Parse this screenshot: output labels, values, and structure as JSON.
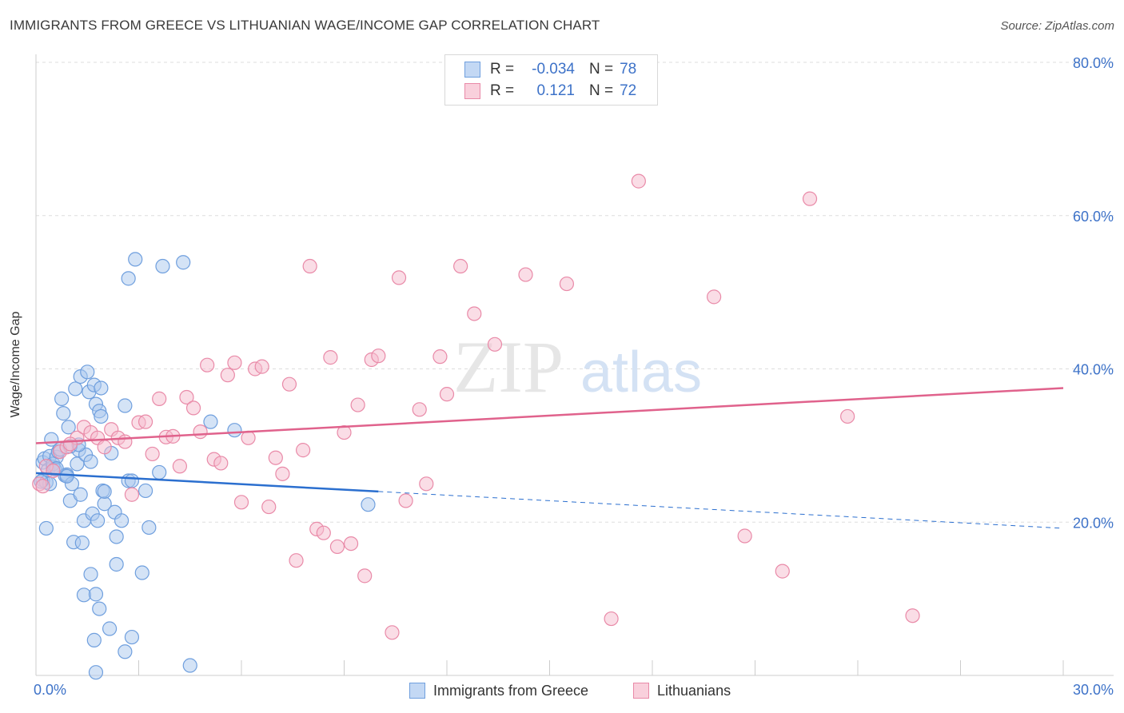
{
  "title": "IMMIGRANTS FROM GREECE VS LITHUANIAN WAGE/INCOME GAP CORRELATION CHART",
  "source": "Source: ZipAtlas.com",
  "watermark": {
    "zip": "ZIP",
    "atlas": "atlas"
  },
  "legend": {
    "rows": [
      {
        "label": "R =",
        "r_value": "-0.034",
        "n_label": "N =",
        "n_value": "78"
      },
      {
        "label": "R =",
        "r_value": "0.121",
        "n_label": "N =",
        "n_value": "72"
      }
    ]
  },
  "colors": {
    "blue_fill": "#a9c7ee",
    "blue_stroke": "#6f9fde",
    "blue_line": "#2b6fcf",
    "pink_fill": "#f6bccd",
    "pink_stroke": "#e98aa8",
    "pink_line": "#e0628c",
    "axis_text": "#3d72c8",
    "grid": "#dddddd"
  },
  "chart_data": {
    "type": "scatter",
    "title": "IMMIGRANTS FROM GREECE VS LITHUANIAN WAGE/INCOME GAP CORRELATION CHART",
    "xlabel": "",
    "ylabel": "Wage/Income Gap",
    "xlim": [
      0,
      30
    ],
    "ylim": [
      0,
      80
    ],
    "x_ticks": [
      "0.0%",
      "30.0%"
    ],
    "y_ticks": [
      {
        "value": 20,
        "label": "20.0%"
      },
      {
        "value": 40,
        "label": "40.0%"
      },
      {
        "value": 60,
        "label": "60.0%"
      },
      {
        "value": 80,
        "label": "80.0%"
      }
    ],
    "series": [
      {
        "name": "Immigrants from Greece",
        "r": -0.034,
        "n": 78,
        "trend": {
          "x0": 0,
          "y0": 26.4,
          "x1": 10,
          "y1": 24.0,
          "x_end": 30,
          "y_end": 19.2
        },
        "points": [
          [
            0.2,
            25.5
          ],
          [
            0.2,
            27.8
          ],
          [
            0.25,
            28.3
          ],
          [
            0.3,
            25.2
          ],
          [
            0.35,
            26.8
          ],
          [
            0.4,
            28.6
          ],
          [
            0.45,
            30.8
          ],
          [
            0.5,
            27.2
          ],
          [
            0.5,
            27.6
          ],
          [
            0.55,
            26.9
          ],
          [
            0.6,
            28.5
          ],
          [
            0.65,
            29.2
          ],
          [
            0.7,
            29.5
          ],
          [
            0.75,
            36.1
          ],
          [
            0.8,
            34.2
          ],
          [
            0.85,
            26.1
          ],
          [
            0.9,
            26.2
          ],
          [
            0.95,
            32.4
          ],
          [
            1.0,
            22.8
          ],
          [
            1.05,
            25.0
          ],
          [
            1.1,
            17.4
          ],
          [
            1.15,
            37.4
          ],
          [
            1.2,
            27.6
          ],
          [
            1.25,
            29.4
          ],
          [
            1.3,
            39.0
          ],
          [
            1.35,
            17.3
          ],
          [
            1.4,
            20.2
          ],
          [
            1.45,
            28.8
          ],
          [
            1.5,
            39.6
          ],
          [
            1.55,
            37.0
          ],
          [
            1.6,
            27.9
          ],
          [
            1.65,
            21.1
          ],
          [
            1.7,
            37.9
          ],
          [
            1.75,
            35.4
          ],
          [
            1.8,
            20.2
          ],
          [
            1.85,
            34.5
          ],
          [
            1.9,
            33.8
          ],
          [
            1.95,
            24.1
          ],
          [
            2.0,
            22.4
          ],
          [
            2.2,
            29.0
          ],
          [
            2.3,
            21.3
          ],
          [
            2.35,
            18.1
          ],
          [
            2.5,
            20.2
          ],
          [
            2.6,
            35.2
          ],
          [
            2.7,
            25.4
          ],
          [
            2.8,
            25.4
          ],
          [
            3.1,
            13.4
          ],
          [
            3.2,
            24.1
          ],
          [
            3.3,
            19.3
          ],
          [
            3.6,
            26.5
          ],
          [
            5.1,
            33.1
          ],
          [
            5.8,
            32.0
          ],
          [
            9.7,
            22.3
          ],
          [
            1.4,
            10.5
          ],
          [
            1.6,
            13.2
          ],
          [
            1.7,
            4.6
          ],
          [
            1.75,
            10.6
          ],
          [
            1.85,
            8.7
          ],
          [
            2.15,
            6.1
          ],
          [
            2.35,
            14.5
          ],
          [
            2.8,
            5.0
          ],
          [
            2.6,
            3.1
          ],
          [
            4.5,
            1.3
          ],
          [
            1.75,
            0.4
          ],
          [
            2.9,
            54.3
          ],
          [
            3.7,
            53.4
          ],
          [
            4.3,
            53.9
          ],
          [
            2.7,
            51.8
          ],
          [
            1.9,
            37.5
          ],
          [
            0.3,
            19.2
          ],
          [
            0.4,
            25.0
          ],
          [
            0.6,
            27.0
          ],
          [
            1.0,
            29.9
          ],
          [
            1.25,
            30.1
          ],
          [
            1.3,
            23.6
          ],
          [
            0.9,
            26.0
          ],
          [
            2.0,
            24.0
          ],
          [
            0.15,
            25.3
          ]
        ]
      },
      {
        "name": "Lithuanians",
        "r": 0.121,
        "n": 72,
        "trend": {
          "x0": 0,
          "y0": 30.3,
          "x1": 30,
          "y1": 37.5
        },
        "points": [
          [
            0.1,
            25.0
          ],
          [
            0.3,
            27.3
          ],
          [
            0.5,
            26.7
          ],
          [
            0.7,
            29.2
          ],
          [
            0.9,
            29.8
          ],
          [
            1.2,
            31.0
          ],
          [
            1.4,
            32.4
          ],
          [
            1.6,
            31.7
          ],
          [
            1.8,
            31.0
          ],
          [
            2.0,
            29.8
          ],
          [
            2.2,
            32.1
          ],
          [
            2.4,
            31.0
          ],
          [
            2.6,
            30.5
          ],
          [
            2.8,
            23.6
          ],
          [
            3.0,
            33.0
          ],
          [
            3.2,
            33.1
          ],
          [
            3.4,
            28.9
          ],
          [
            3.6,
            36.1
          ],
          [
            3.8,
            31.1
          ],
          [
            4.0,
            31.2
          ],
          [
            4.2,
            27.3
          ],
          [
            4.4,
            36.3
          ],
          [
            4.6,
            34.9
          ],
          [
            4.8,
            31.8
          ],
          [
            5.0,
            40.5
          ],
          [
            5.2,
            28.2
          ],
          [
            5.4,
            27.7
          ],
          [
            5.6,
            39.2
          ],
          [
            5.8,
            40.8
          ],
          [
            6.0,
            22.6
          ],
          [
            6.2,
            31.0
          ],
          [
            6.4,
            40.0
          ],
          [
            6.6,
            40.3
          ],
          [
            6.8,
            22.0
          ],
          [
            7.0,
            28.4
          ],
          [
            7.2,
            26.3
          ],
          [
            7.4,
            38.0
          ],
          [
            7.6,
            15.0
          ],
          [
            7.8,
            29.4
          ],
          [
            8.0,
            53.4
          ],
          [
            8.2,
            19.1
          ],
          [
            8.4,
            18.6
          ],
          [
            8.6,
            41.5
          ],
          [
            8.8,
            16.8
          ],
          [
            9.0,
            31.7
          ],
          [
            9.2,
            17.2
          ],
          [
            9.4,
            35.3
          ],
          [
            9.6,
            13.0
          ],
          [
            9.8,
            41.2
          ],
          [
            10.0,
            41.7
          ],
          [
            10.4,
            5.6
          ],
          [
            10.6,
            51.9
          ],
          [
            10.8,
            22.8
          ],
          [
            11.2,
            34.7
          ],
          [
            11.4,
            25.0
          ],
          [
            11.8,
            41.6
          ],
          [
            12.0,
            36.7
          ],
          [
            12.4,
            53.4
          ],
          [
            12.8,
            47.2
          ],
          [
            13.4,
            43.2
          ],
          [
            14.3,
            52.3
          ],
          [
            15.5,
            51.1
          ],
          [
            16.8,
            7.4
          ],
          [
            17.6,
            64.5
          ],
          [
            19.8,
            49.4
          ],
          [
            20.7,
            18.2
          ],
          [
            21.8,
            13.6
          ],
          [
            22.6,
            62.2
          ],
          [
            23.7,
            33.8
          ],
          [
            25.6,
            7.8
          ],
          [
            0.2,
            24.7
          ],
          [
            1.0,
            30.2
          ]
        ]
      }
    ]
  },
  "bottom_legend": [
    {
      "label": "Immigrants from Greece"
    },
    {
      "label": "Lithuanians"
    }
  ]
}
